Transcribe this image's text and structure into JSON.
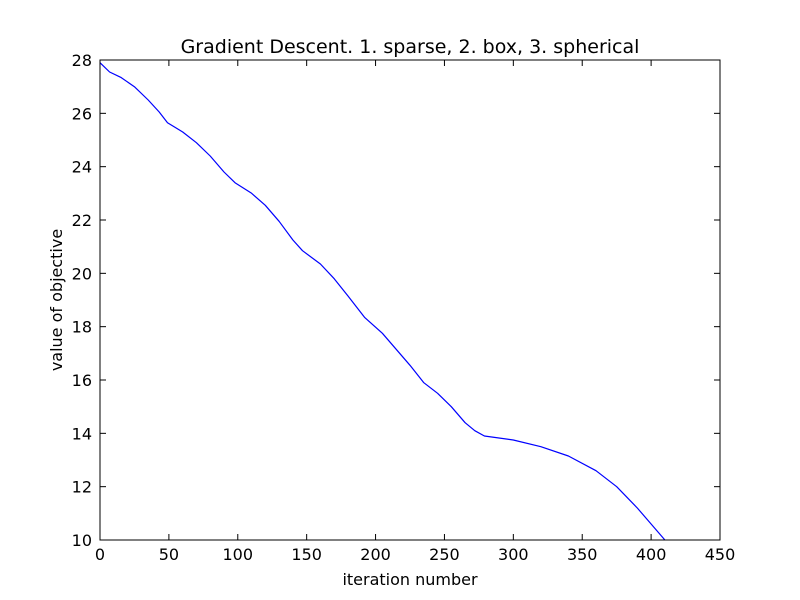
{
  "chart_data": {
    "type": "line",
    "title": "Gradient Descent. 1. sparse, 2. box, 3. spherical",
    "xlabel": "iteration number",
    "ylabel": "value of objective",
    "xlim": [
      0,
      450
    ],
    "ylim": [
      10,
      28
    ],
    "xticks": [
      0,
      50,
      100,
      150,
      200,
      250,
      300,
      350,
      400,
      450
    ],
    "yticks": [
      10,
      12,
      14,
      16,
      18,
      20,
      22,
      24,
      26,
      28
    ],
    "grid": false,
    "legend": "none",
    "series": [
      {
        "color": "#0000ff",
        "x": [
          0,
          3,
          7,
          15,
          25,
          35,
          43,
          49,
          60,
          70,
          80,
          90,
          98,
          110,
          120,
          130,
          140,
          147,
          160,
          170,
          180,
          192,
          205,
          215,
          225,
          235,
          245,
          255,
          265,
          272,
          279,
          300,
          320,
          340,
          360,
          375,
          390,
          400,
          405,
          410
        ],
        "y": [
          27.9,
          27.75,
          27.55,
          27.35,
          27.0,
          26.5,
          26.05,
          25.65,
          25.3,
          24.9,
          24.4,
          23.8,
          23.4,
          23.0,
          22.55,
          21.95,
          21.25,
          20.85,
          20.35,
          19.8,
          19.15,
          18.35,
          17.75,
          17.15,
          16.55,
          15.9,
          15.5,
          15.0,
          14.4,
          14.1,
          13.9,
          13.75,
          13.5,
          13.15,
          12.6,
          12.0,
          11.2,
          10.6,
          10.3,
          10.0
        ]
      }
    ]
  }
}
